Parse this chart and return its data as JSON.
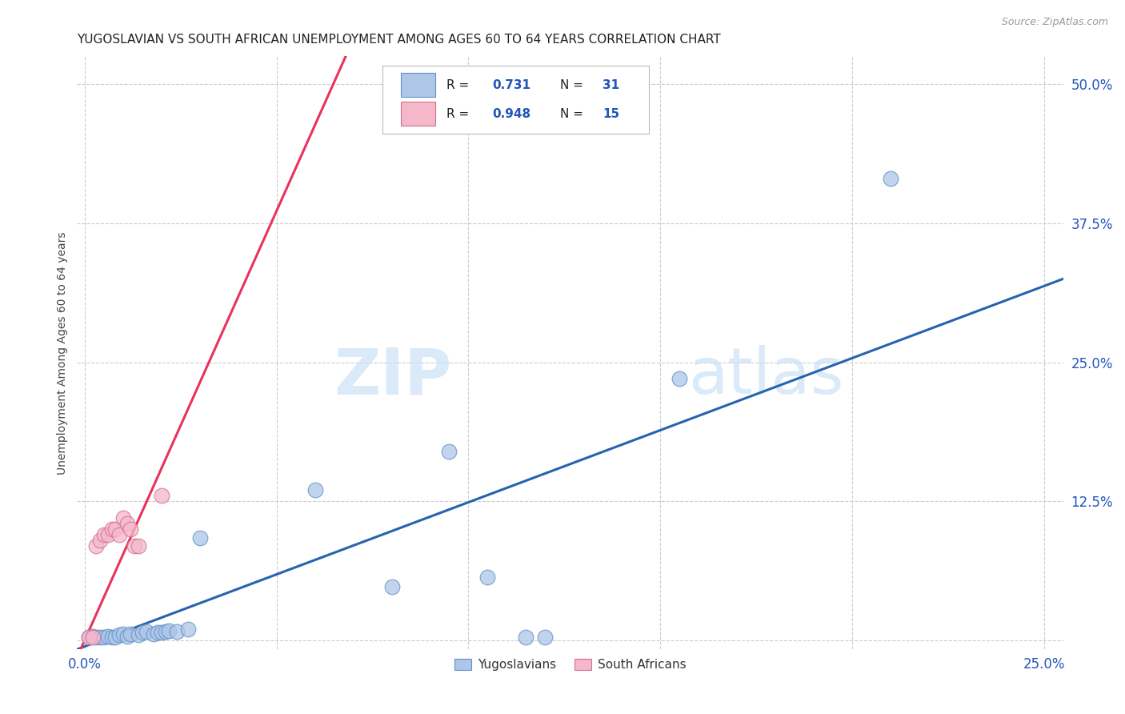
{
  "title": "YUGOSLAVIAN VS SOUTH AFRICAN UNEMPLOYMENT AMONG AGES 60 TO 64 YEARS CORRELATION CHART",
  "source": "Source: ZipAtlas.com",
  "ylabel": "Unemployment Among Ages 60 to 64 years",
  "xlim": [
    -0.002,
    0.255
  ],
  "ylim": [
    -0.008,
    0.525
  ],
  "xticks": [
    0.0,
    0.05,
    0.1,
    0.15,
    0.2,
    0.25
  ],
  "yticks": [
    0.0,
    0.125,
    0.25,
    0.375,
    0.5
  ],
  "blue_R": 0.731,
  "blue_N": 31,
  "pink_R": 0.948,
  "pink_N": 15,
  "blue_color": "#aec6e8",
  "pink_color": "#f5b8cb",
  "blue_line_color": "#2563b0",
  "pink_line_color": "#e8335a",
  "blue_scatter": [
    [
      0.001,
      0.003
    ],
    [
      0.002,
      0.004
    ],
    [
      0.003,
      0.003
    ],
    [
      0.004,
      0.003
    ],
    [
      0.005,
      0.003
    ],
    [
      0.006,
      0.004
    ],
    [
      0.007,
      0.003
    ],
    [
      0.008,
      0.003
    ],
    [
      0.009,
      0.005
    ],
    [
      0.01,
      0.006
    ],
    [
      0.011,
      0.004
    ],
    [
      0.012,
      0.006
    ],
    [
      0.014,
      0.005
    ],
    [
      0.015,
      0.007
    ],
    [
      0.016,
      0.008
    ],
    [
      0.018,
      0.006
    ],
    [
      0.019,
      0.007
    ],
    [
      0.02,
      0.007
    ],
    [
      0.021,
      0.008
    ],
    [
      0.022,
      0.009
    ],
    [
      0.024,
      0.008
    ],
    [
      0.027,
      0.01
    ],
    [
      0.03,
      0.092
    ],
    [
      0.06,
      0.135
    ],
    [
      0.08,
      0.048
    ],
    [
      0.095,
      0.17
    ],
    [
      0.105,
      0.057
    ],
    [
      0.115,
      0.003
    ],
    [
      0.12,
      0.003
    ],
    [
      0.155,
      0.235
    ],
    [
      0.21,
      0.415
    ]
  ],
  "pink_scatter": [
    [
      0.001,
      0.003
    ],
    [
      0.002,
      0.003
    ],
    [
      0.003,
      0.085
    ],
    [
      0.004,
      0.09
    ],
    [
      0.005,
      0.095
    ],
    [
      0.006,
      0.095
    ],
    [
      0.007,
      0.1
    ],
    [
      0.008,
      0.1
    ],
    [
      0.009,
      0.095
    ],
    [
      0.01,
      0.11
    ],
    [
      0.011,
      0.105
    ],
    [
      0.012,
      0.1
    ],
    [
      0.013,
      0.085
    ],
    [
      0.014,
      0.085
    ],
    [
      0.02,
      0.13
    ]
  ],
  "blue_line_x": [
    -0.002,
    0.255
  ],
  "blue_line_y": [
    -0.008,
    0.325
  ],
  "pink_line_x": [
    -0.002,
    0.068
  ],
  "pink_line_y": [
    -0.015,
    0.525
  ],
  "watermark_zip": "ZIP",
  "watermark_atlas": "atlas",
  "title_fontsize": 11,
  "label_fontsize": 10,
  "tick_fontsize": 12,
  "source_fontsize": 9
}
